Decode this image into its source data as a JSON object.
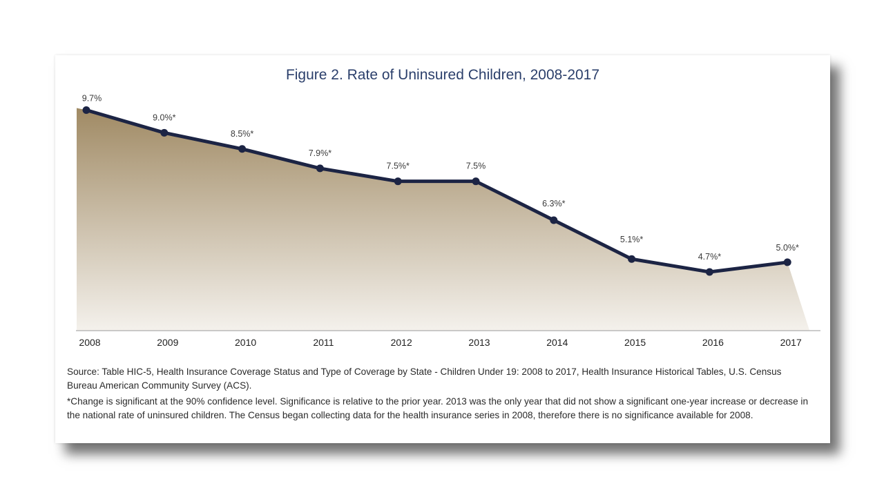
{
  "colors": {
    "line": "#1c2444",
    "area_top": "#a08a64",
    "area_bottom": "#f4f1ec",
    "title": "#2b3f6b"
  },
  "chart_data": {
    "type": "area",
    "title": "Figure 2. Rate of Uninsured Children, 2008-2017",
    "x": [
      "2008",
      "2009",
      "2010",
      "2011",
      "2012",
      "2013",
      "2014",
      "2015",
      "2016",
      "2017"
    ],
    "series": [
      {
        "values": [
          9.7,
          9.0,
          8.5,
          7.9,
          7.5,
          7.5,
          6.3,
          5.1,
          4.7,
          5.0
        ]
      }
    ],
    "data_labels": [
      "9.7%",
      "9.0%*",
      "8.5%*",
      "7.9%*",
      "7.5%*",
      "7.5%",
      "6.3%*",
      "5.1%*",
      "4.7%*",
      "5.0%*"
    ],
    "xlabel": "",
    "ylabel": "",
    "y_axis_visible": false,
    "grid": false,
    "legend": "none"
  },
  "notes": {
    "source": "Source: Table HIC-5, Health Insurance Coverage Status and Type of Coverage by State - Children Under 19: 2008 to 2017, Health Insurance Historical Tables, U.S. Census Bureau American Community Survey (ACS).",
    "significance": "*Change is significant at the 90% confidence level. Significance is relative to the prior year. 2013 was the only year that did not show a significant one-year increase or decrease in the national rate of uninsured children. The Census began collecting data for the health insurance series in 2008, therefore there is no significance available for 2008."
  }
}
